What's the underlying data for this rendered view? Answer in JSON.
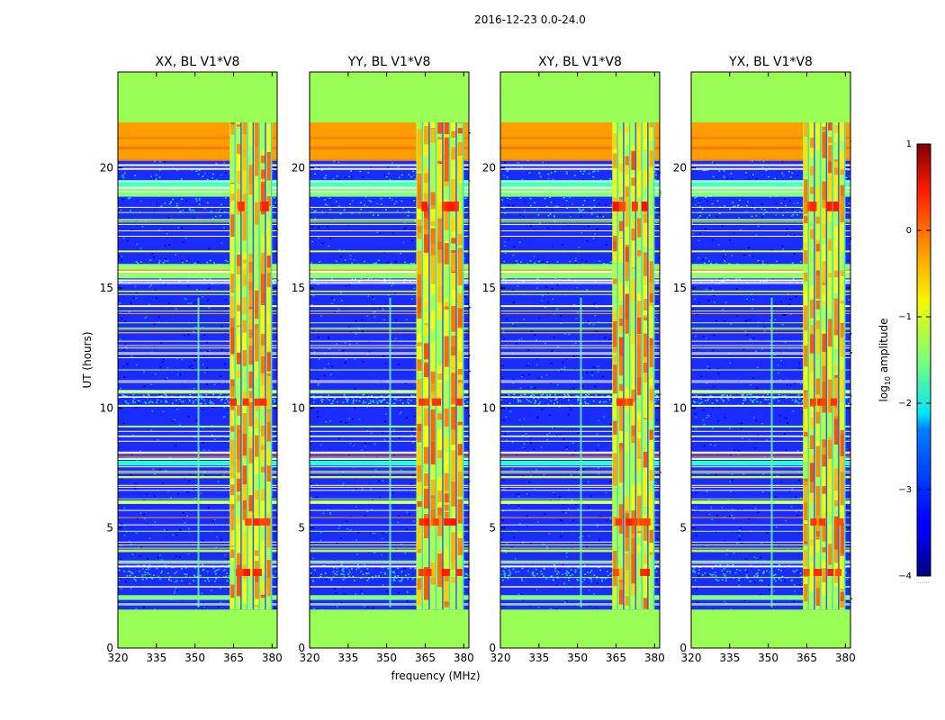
{
  "figure": {
    "suptitle": "2016-12-23 0.0-24.0",
    "xlabel": "frequency (MHz)",
    "ylabel": "UT (hours)"
  },
  "colorbar": {
    "label_prefix": "log",
    "label_sub": "10",
    "label_suffix": " amplitude",
    "min": -4,
    "max": 1,
    "ticks": [
      1,
      0,
      -1,
      -2,
      -3,
      -4
    ],
    "tick_labels": [
      "1",
      "0",
      "−1",
      "−2",
      "−3",
      "−4"
    ],
    "footer": "......"
  },
  "chart_data": [
    {
      "type": "heatmap",
      "title": "XX, BL V1*V8",
      "xlim": [
        320,
        382
      ],
      "ylim": [
        0,
        24
      ],
      "xticks": [
        320,
        335,
        350,
        365,
        380
      ],
      "yticks": [
        0,
        5,
        10,
        15,
        20
      ],
      "colormap": "jet",
      "masked_color": "#99ff55",
      "masked_time_ranges_hours": [
        [
          0,
          1.6
        ],
        [
          21.9,
          24
        ]
      ],
      "rfi_band_mhz": [
        363.5,
        380
      ],
      "narrow_rfi_line_mhz": 351
    },
    {
      "type": "heatmap",
      "title": "YY, BL V1*V8",
      "xlim": [
        320,
        382
      ],
      "ylim": [
        0,
        24
      ],
      "xticks": [
        320,
        335,
        350,
        365,
        380
      ],
      "yticks": [
        0,
        5,
        10,
        15,
        20
      ],
      "colormap": "jet",
      "masked_color": "#99ff55",
      "masked_time_ranges_hours": [
        [
          0,
          1.6
        ],
        [
          21.9,
          24
        ]
      ],
      "rfi_band_mhz": [
        361.5,
        380
      ],
      "narrow_rfi_line_mhz": 351
    },
    {
      "type": "heatmap",
      "title": "XY, BL V1*V8",
      "xlim": [
        320,
        382
      ],
      "ylim": [
        0,
        24
      ],
      "xticks": [
        320,
        335,
        350,
        365,
        380
      ],
      "yticks": [
        0,
        5,
        10,
        15,
        20
      ],
      "colormap": "jet",
      "masked_color": "#99ff55",
      "masked_time_ranges_hours": [
        [
          0,
          1.6
        ],
        [
          21.9,
          24
        ]
      ],
      "rfi_band_mhz": [
        363.5,
        380
      ],
      "narrow_rfi_line_mhz": 351
    },
    {
      "type": "heatmap",
      "title": "YX, BL V1*V8",
      "xlim": [
        320,
        382
      ],
      "ylim": [
        0,
        24
      ],
      "xticks": [
        320,
        335,
        350,
        365,
        380
      ],
      "yticks": [
        0,
        5,
        10,
        15,
        20
      ],
      "colormap": "jet",
      "masked_color": "#99ff55",
      "masked_time_ranges_hours": [
        [
          0,
          1.6
        ],
        [
          21.9,
          24
        ]
      ],
      "rfi_band_mhz": [
        363.5,
        380
      ],
      "narrow_rfi_line_mhz": 351
    }
  ]
}
